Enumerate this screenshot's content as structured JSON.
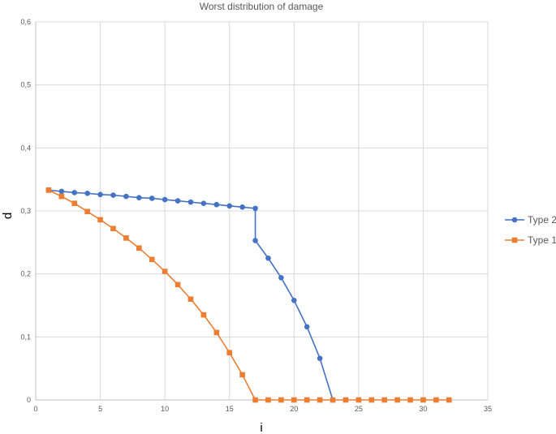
{
  "chart_data": {
    "type": "line",
    "title": "Worst distribution of damage",
    "xlabel": "i",
    "ylabel": "d",
    "xlim": [
      0,
      35
    ],
    "ylim": [
      0,
      0.6
    ],
    "xticks": [
      0,
      5,
      10,
      15,
      20,
      25,
      30,
      35
    ],
    "yticks": [
      0,
      0.1,
      0.2,
      0.3,
      0.4,
      0.5,
      0.6
    ],
    "xtick_labels": [
      "0",
      "5",
      "10",
      "15",
      "20",
      "25",
      "30",
      "35"
    ],
    "ytick_labels": [
      "0",
      "0,1",
      "0,2",
      "0,3",
      "0,4",
      "0,5",
      "0,6"
    ],
    "grid": true,
    "legend_position": "right",
    "series": [
      {
        "name": "Type 2",
        "color": "#4472c4",
        "marker": "circle",
        "points": [
          [
            1,
            0.333
          ],
          [
            2,
            0.331
          ],
          [
            3,
            0.329
          ],
          [
            4,
            0.328
          ],
          [
            5,
            0.326
          ],
          [
            6,
            0.325
          ],
          [
            7,
            0.323
          ],
          [
            8,
            0.321
          ],
          [
            9,
            0.32
          ],
          [
            10,
            0.318
          ],
          [
            11,
            0.316
          ],
          [
            12,
            0.314
          ],
          [
            13,
            0.312
          ],
          [
            14,
            0.31
          ],
          [
            15,
            0.308
          ],
          [
            16,
            0.306
          ],
          [
            17,
            0.304
          ],
          [
            17,
            0.253
          ],
          [
            18,
            0.225
          ],
          [
            19,
            0.194
          ],
          [
            20,
            0.158
          ],
          [
            21,
            0.116
          ],
          [
            22,
            0.066
          ],
          [
            23,
            0.0
          ]
        ]
      },
      {
        "name": "Type 1",
        "color": "#ed7d31",
        "marker": "square",
        "points": [
          [
            1,
            0.333
          ],
          [
            2,
            0.323
          ],
          [
            3,
            0.312
          ],
          [
            4,
            0.299
          ],
          [
            5,
            0.286
          ],
          [
            6,
            0.272
          ],
          [
            7,
            0.257
          ],
          [
            8,
            0.241
          ],
          [
            9,
            0.223
          ],
          [
            10,
            0.204
          ],
          [
            11,
            0.183
          ],
          [
            12,
            0.16
          ],
          [
            13,
            0.135
          ],
          [
            14,
            0.107
          ],
          [
            15,
            0.075
          ],
          [
            16,
            0.04
          ],
          [
            17,
            0.0
          ],
          [
            18,
            0.0
          ],
          [
            19,
            0.0
          ],
          [
            20,
            0.0
          ],
          [
            21,
            0.0
          ],
          [
            22,
            0.0
          ],
          [
            23,
            0.0
          ],
          [
            24,
            0.0
          ],
          [
            25,
            0.0
          ],
          [
            26,
            0.0
          ],
          [
            27,
            0.0
          ],
          [
            28,
            0.0
          ],
          [
            29,
            0.0
          ],
          [
            30,
            0.0
          ],
          [
            31,
            0.0
          ],
          [
            32,
            0.0
          ]
        ]
      }
    ]
  }
}
